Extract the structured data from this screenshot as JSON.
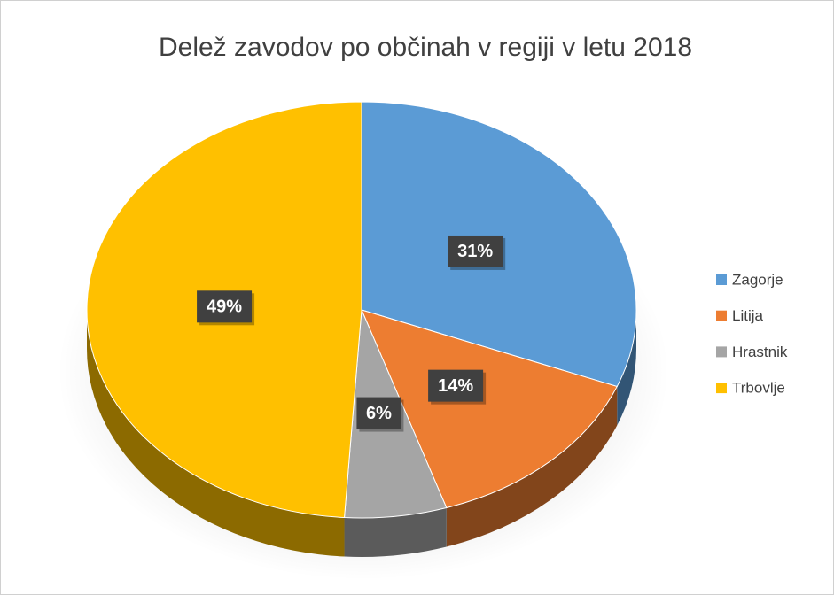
{
  "chart_data": {
    "type": "pie",
    "title": "Delež zavodov po občinah v regiji v letu 2018",
    "categories": [
      "Zagorje",
      "Litija",
      "Hrastnik",
      "Trbovlje"
    ],
    "values": [
      31,
      14,
      6,
      49
    ],
    "value_labels": [
      "31%",
      "14%",
      "6%",
      "49%"
    ],
    "colors": [
      "#5b9bd5",
      "#ed7d31",
      "#a5a5a5",
      "#ffc000"
    ],
    "legend": "right"
  }
}
